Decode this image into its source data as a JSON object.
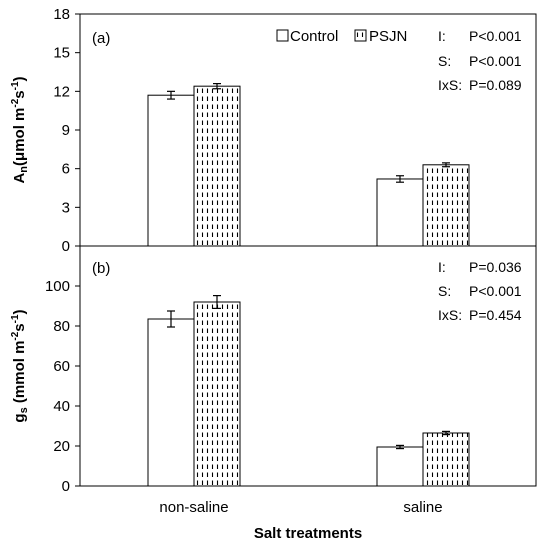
{
  "chart_data": {
    "type": "bar",
    "xlabel": "Salt treatments",
    "categories": [
      "non-saline",
      "saline"
    ],
    "legend": {
      "placement": "top-right",
      "entries": [
        "Control",
        "PSJN"
      ]
    },
    "colors": {
      "control": "#ffffff",
      "psjn_pattern": "#000000"
    },
    "panels": [
      {
        "label": "(a)",
        "ylabel_main": "A",
        "ylabel_sub": "n",
        "ylabel_unit_pre": "(μmol m",
        "ylabel_sup1": "-2",
        "ylabel_mid": "s",
        "ylabel_sup2": "-1",
        "ylabel_unit_post": ")",
        "ylim": [
          0,
          18
        ],
        "yticks": [
          0,
          3,
          6,
          9,
          12,
          15,
          18
        ],
        "series": [
          {
            "name": "Control",
            "values": [
              11.7,
              5.2
            ],
            "errors": [
              0.3,
              0.25
            ]
          },
          {
            "name": "PSJN",
            "values": [
              12.4,
              6.3
            ],
            "errors": [
              0.2,
              0.15
            ]
          }
        ],
        "stats": [
          {
            "term": "I:",
            "p": "P<0.001"
          },
          {
            "term": "S:",
            "p": "P<0.001"
          },
          {
            "term": "IxS:",
            "p": "P=0.089"
          }
        ]
      },
      {
        "label": "(b)",
        "ylabel_main": "g",
        "ylabel_sub": "s",
        "ylabel_unit_pre": " (mmol m",
        "ylabel_sup1": "-2",
        "ylabel_mid": "s",
        "ylabel_sup2": "-1",
        "ylabel_unit_post": ")",
        "ylim": [
          0,
          120
        ],
        "yticks": [
          0,
          20,
          40,
          60,
          80,
          100
        ],
        "series": [
          {
            "name": "Control",
            "values": [
              83.5,
              19.5
            ],
            "errors": [
              4.0,
              0.8
            ]
          },
          {
            "name": "PSJN",
            "values": [
              92.0,
              26.5
            ],
            "errors": [
              3.2,
              0.8
            ]
          }
        ],
        "stats": [
          {
            "term": "I:",
            "p": "P=0.036"
          },
          {
            "term": "S:",
            "p": "P<0.001"
          },
          {
            "term": "IxS:",
            "p": "P=0.454"
          }
        ]
      }
    ]
  }
}
